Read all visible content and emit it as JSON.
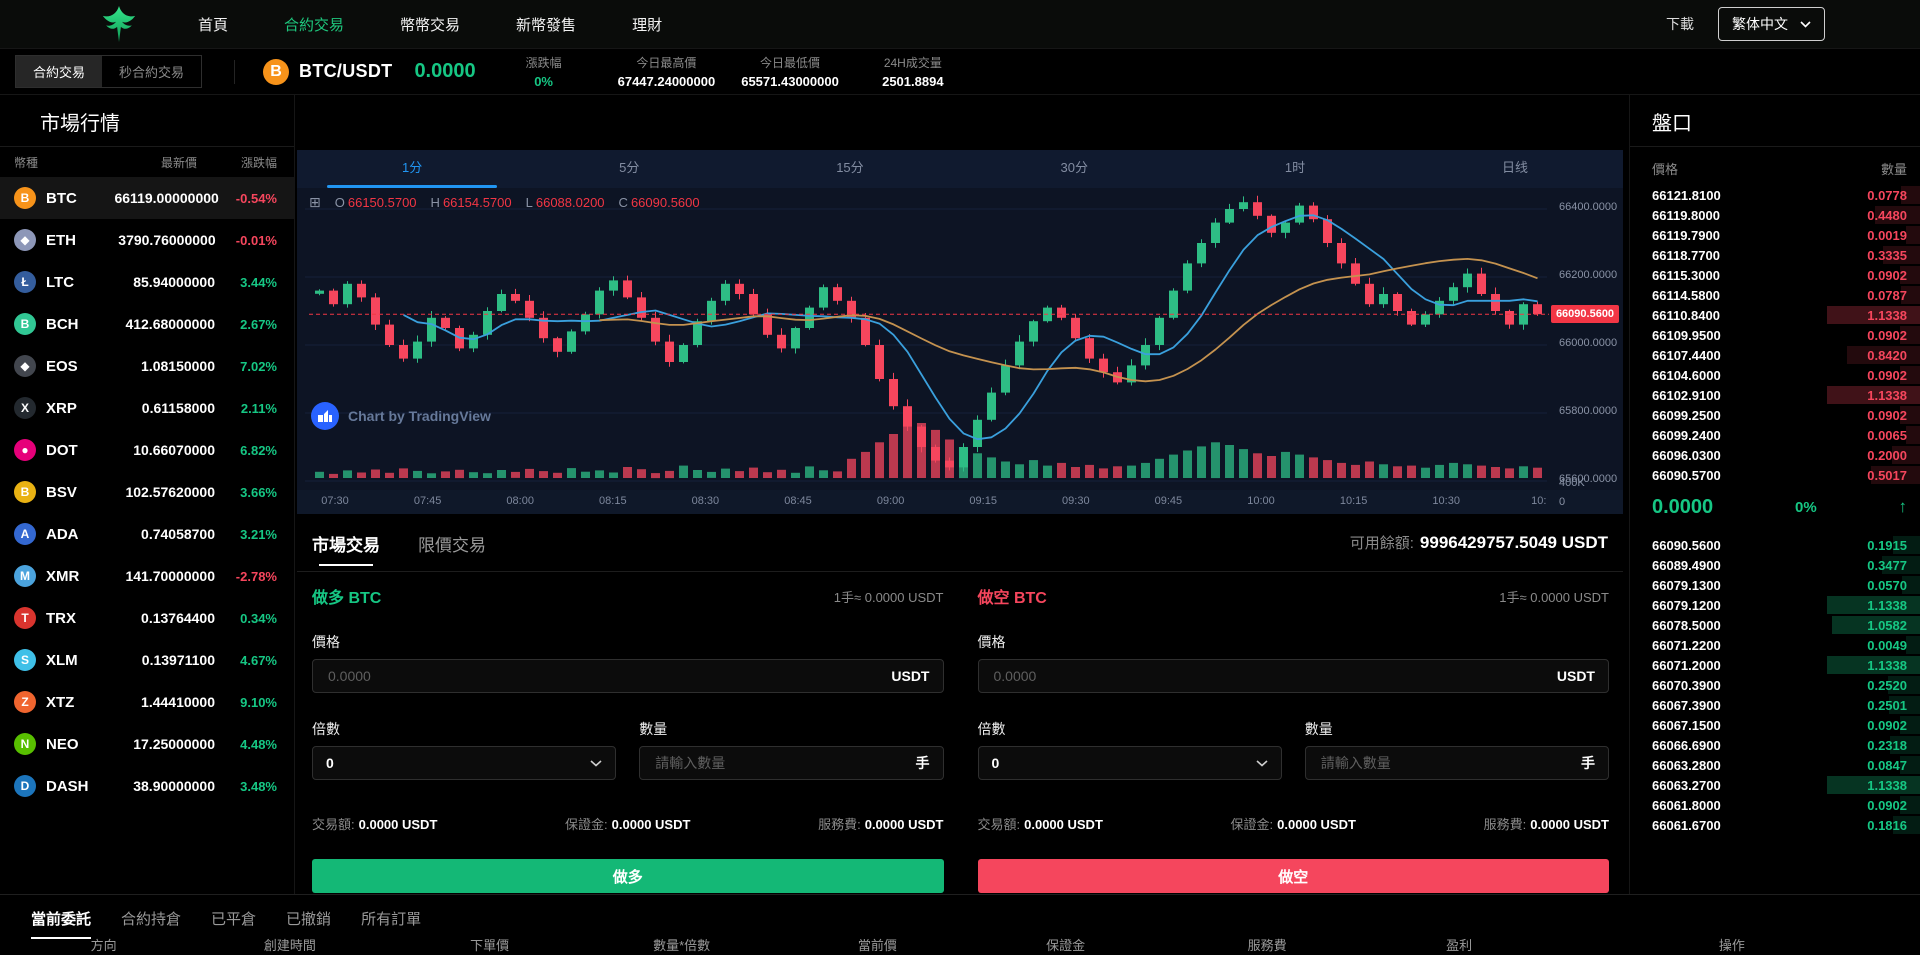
{
  "nav": {
    "items": [
      {
        "label": "首頁",
        "active": false
      },
      {
        "label": "合約交易",
        "active": true
      },
      {
        "label": "幣幣交易",
        "active": false
      },
      {
        "label": "新幣發售",
        "active": false
      },
      {
        "label": "理財",
        "active": false
      }
    ],
    "download": "下載",
    "language": "繁体中文",
    "accent_green": "#1ec77d"
  },
  "ticker": {
    "tabs": [
      {
        "label": "合約交易",
        "active": true
      },
      {
        "label": "秒合約交易",
        "active": false
      }
    ],
    "coin_icon": "B",
    "pair": "BTC/USDT",
    "price": "0.0000",
    "stats": [
      {
        "label": "漲跌幅",
        "value": "0%",
        "green": true
      },
      {
        "label": "今日最高價",
        "value": "67447.24000000",
        "green": false
      },
      {
        "label": "今日最低價",
        "value": "65571.43000000",
        "green": false
      },
      {
        "label": "24H成交量",
        "value": "2501.8894",
        "green": false
      }
    ]
  },
  "market": {
    "title": "市場行情",
    "headers": [
      "幣種",
      "最新價",
      "漲跌幅"
    ],
    "rows": [
      {
        "symbol": "BTC",
        "price": "66119.00000000",
        "change": "-0.54%",
        "down": true,
        "icon_color": "#f7931a",
        "glyph": "B",
        "highlight": true
      },
      {
        "symbol": "ETH",
        "price": "3790.76000000",
        "change": "-0.01%",
        "down": true,
        "icon_color": "#8d97b8",
        "glyph": "◆",
        "highlight": false
      },
      {
        "symbol": "LTC",
        "price": "85.94000000",
        "change": "3.44%",
        "down": false,
        "icon_color": "#345d9d",
        "glyph": "Ł",
        "highlight": false
      },
      {
        "symbol": "BCH",
        "price": "412.68000000",
        "change": "2.67%",
        "down": false,
        "icon_color": "#31c794",
        "glyph": "B",
        "highlight": false
      },
      {
        "symbol": "EOS",
        "price": "1.08150000",
        "change": "7.02%",
        "down": false,
        "icon_color": "#42464e",
        "glyph": "◆",
        "highlight": false
      },
      {
        "symbol": "XRP",
        "price": "0.61158000",
        "change": "2.11%",
        "down": false,
        "icon_color": "#23292f",
        "glyph": "X",
        "highlight": false
      },
      {
        "symbol": "DOT",
        "price": "10.66070000",
        "change": "6.82%",
        "down": false,
        "icon_color": "#e6007a",
        "glyph": "●",
        "highlight": false
      },
      {
        "symbol": "BSV",
        "price": "102.57620000",
        "change": "3.66%",
        "down": false,
        "icon_color": "#e9b213",
        "glyph": "B",
        "highlight": false
      },
      {
        "symbol": "ADA",
        "price": "0.74058700",
        "change": "3.21%",
        "down": false,
        "icon_color": "#3468d1",
        "glyph": "A",
        "highlight": false
      },
      {
        "symbol": "XMR",
        "price": "141.70000000",
        "change": "-2.78%",
        "down": true,
        "icon_color": "#4ba3dd",
        "glyph": "M",
        "highlight": false
      },
      {
        "symbol": "TRX",
        "price": "0.13764400",
        "change": "0.34%",
        "down": false,
        "icon_color": "#d9342e",
        "glyph": "T",
        "highlight": false
      },
      {
        "symbol": "XLM",
        "price": "0.13971100",
        "change": "4.67%",
        "down": false,
        "icon_color": "#3fc0e8",
        "glyph": "S",
        "highlight": false
      },
      {
        "symbol": "XTZ",
        "price": "1.44410000",
        "change": "9.10%",
        "down": false,
        "icon_color": "#f0652f",
        "glyph": "Z",
        "highlight": false
      },
      {
        "symbol": "NEO",
        "price": "17.25000000",
        "change": "4.48%",
        "down": false,
        "icon_color": "#58bf00",
        "glyph": "N",
        "highlight": false
      },
      {
        "symbol": "DASH",
        "price": "38.90000000",
        "change": "3.48%",
        "down": false,
        "icon_color": "#1c75bc",
        "glyph": "D",
        "highlight": false
      }
    ]
  },
  "chart": {
    "timeframes": [
      "1分",
      "5分",
      "15分",
      "30分",
      "1时",
      "日线"
    ],
    "active_timeframe": "1分",
    "ohlc": {
      "o_label": "O",
      "o": "66150.5700",
      "h_label": "H",
      "h": "66154.5700",
      "l_label": "L",
      "l": "66088.0200",
      "c_label": "C",
      "c": "66090.5600"
    },
    "price_axis_labels": [
      "66400.0000",
      "66200.0000",
      "66000.0000",
      "65800.0000",
      "65600.0000"
    ],
    "last_price_label": "66090.5600",
    "volume_labels": [
      "400K",
      "0"
    ],
    "time_labels": [
      "07:30",
      "07:45",
      "08:00",
      "08:15",
      "08:30",
      "08:45",
      "09:00",
      "09:15",
      "09:30",
      "09:45",
      "10:00",
      "10:15",
      "10:30",
      "10:"
    ],
    "attribution": "Chart by TradingView",
    "up_color": "#2ebd85",
    "down_color": "#f6465d",
    "last_price_color": "#f23645"
  },
  "chart_data": {
    "type": "candlestick",
    "timeframe": "1分",
    "first_open": 66150.57,
    "last_close": 66090.56,
    "price_gridlines": [
      66400,
      66200,
      66000,
      65800,
      65600
    ],
    "ma_periods": [
      7,
      21
    ],
    "volume_axis_max_k": 400,
    "closes": [
      66160,
      66120,
      66180,
      66140,
      66060,
      66000,
      65960,
      66010,
      66080,
      66050,
      65990,
      66030,
      66100,
      66150,
      66130,
      66080,
      66020,
      65980,
      66040,
      66090,
      66160,
      66190,
      66140,
      66080,
      66010,
      65950,
      66000,
      66070,
      66130,
      66180,
      66150,
      66090,
      66030,
      65990,
      66050,
      66110,
      66170,
      66130,
      66080,
      66000,
      65900,
      65820,
      65760,
      65700,
      65660,
      65640,
      65700,
      65780,
      65860,
      65940,
      66010,
      66070,
      66110,
      66080,
      66020,
      65960,
      65920,
      65890,
      65940,
      66000,
      66080,
      66160,
      66240,
      66300,
      66360,
      66400,
      66420,
      66380,
      66330,
      66360,
      66410,
      66370,
      66300,
      66240,
      66180,
      66120,
      66150,
      66100,
      66060,
      66090,
      66130,
      66170,
      66210,
      66150,
      66100,
      66060,
      66120,
      66090.56
    ],
    "volumes_k": [
      45,
      30,
      55,
      40,
      62,
      38,
      70,
      52,
      34,
      48,
      60,
      42,
      35,
      58,
      44,
      66,
      50,
      38,
      72,
      46,
      55,
      40,
      80,
      64,
      36,
      52,
      90,
      58,
      44,
      68,
      50,
      76,
      42,
      60,
      38,
      84,
      56,
      48,
      140,
      190,
      260,
      320,
      380,
      400,
      350,
      280,
      220,
      180,
      150,
      120,
      100,
      130,
      90,
      110,
      80,
      95,
      70,
      85,
      90,
      110,
      140,
      170,
      200,
      230,
      260,
      240,
      210,
      180,
      160,
      190,
      170,
      150,
      130,
      110,
      95,
      120,
      100,
      85,
      90,
      75,
      95,
      110,
      100,
      90,
      80,
      70,
      85,
      75
    ]
  },
  "trade": {
    "tabs": [
      {
        "label": "市場交易",
        "active": true
      },
      {
        "label": "限價交易",
        "active": false
      }
    ],
    "balance_label": "可用餘額:",
    "balance_value": "9996429757.5049 USDT",
    "long": {
      "title": "做多 BTC",
      "unit": "1手≈ 0.0000 USDT",
      "price_label": "價格",
      "price_placeholder": "0.0000",
      "price_suffix": "USDT",
      "lever_label": "倍數",
      "lever_value": "0",
      "qty_label": "數量",
      "qty_placeholder": "請輸入數量",
      "qty_suffix": "手",
      "amount_label": "交易額:",
      "amount_value": "0.0000 USDT",
      "margin_label": "保證金:",
      "margin_value": "0.0000 USDT",
      "fee_label": "服務費:",
      "fee_value": "0.0000 USDT",
      "button": "做多"
    },
    "short": {
      "title": "做空 BTC",
      "unit": "1手≈ 0.0000 USDT",
      "price_label": "價格",
      "price_placeholder": "0.0000",
      "price_suffix": "USDT",
      "lever_label": "倍數",
      "lever_value": "0",
      "qty_label": "數量",
      "qty_placeholder": "請輸入數量",
      "qty_suffix": "手",
      "amount_label": "交易額:",
      "amount_value": "0.0000 USDT",
      "margin_label": "保證金:",
      "margin_value": "0.0000 USDT",
      "fee_label": "服務費:",
      "fee_value": "0.0000 USDT",
      "button": "做空"
    }
  },
  "orderbook": {
    "title": "盤口",
    "headers": [
      "價格",
      "數量"
    ],
    "asks": [
      {
        "p": "66121.8100",
        "q": "0.0778"
      },
      {
        "p": "66119.8000",
        "q": "0.4480"
      },
      {
        "p": "66119.7900",
        "q": "0.0019"
      },
      {
        "p": "66118.7700",
        "q": "0.3335"
      },
      {
        "p": "66115.3000",
        "q": "0.0902"
      },
      {
        "p": "66114.5800",
        "q": "0.0787"
      },
      {
        "p": "66110.8400",
        "q": "1.1338"
      },
      {
        "p": "66109.9500",
        "q": "0.0902"
      },
      {
        "p": "66107.4400",
        "q": "0.8420"
      },
      {
        "p": "66104.6000",
        "q": "0.0902"
      },
      {
        "p": "66102.9100",
        "q": "1.1338"
      },
      {
        "p": "66099.2500",
        "q": "0.0902"
      },
      {
        "p": "66099.2400",
        "q": "0.0065"
      },
      {
        "p": "66096.0300",
        "q": "0.2000"
      },
      {
        "p": "66090.5700",
        "q": "0.5017"
      }
    ],
    "mid": {
      "price": "0.0000",
      "pct": "0%",
      "arrow": "↑"
    },
    "bids": [
      {
        "p": "66090.5600",
        "q": "0.1915"
      },
      {
        "p": "66089.4900",
        "q": "0.3477"
      },
      {
        "p": "66079.1300",
        "q": "0.0570"
      },
      {
        "p": "66079.1200",
        "q": "1.1338"
      },
      {
        "p": "66078.5000",
        "q": "1.0582"
      },
      {
        "p": "66071.2200",
        "q": "0.0049"
      },
      {
        "p": "66071.2000",
        "q": "1.1338"
      },
      {
        "p": "66070.3900",
        "q": "0.2520"
      },
      {
        "p": "66067.3900",
        "q": "0.2501"
      },
      {
        "p": "66067.1500",
        "q": "0.0902"
      },
      {
        "p": "66066.6900",
        "q": "0.2318"
      },
      {
        "p": "66063.2800",
        "q": "0.0847"
      },
      {
        "p": "66063.2700",
        "q": "1.1338"
      },
      {
        "p": "66061.8000",
        "q": "0.0902"
      },
      {
        "p": "66061.6700",
        "q": "0.1816"
      }
    ]
  },
  "bottom": {
    "tabs": [
      {
        "label": "當前委託",
        "active": true
      },
      {
        "label": "合約持倉",
        "active": false
      },
      {
        "label": "已平倉",
        "active": false
      },
      {
        "label": "已撤銷",
        "active": false
      },
      {
        "label": "所有訂單",
        "active": false
      }
    ],
    "columns": [
      "方向",
      "創建時間",
      "下單價",
      "數量*倍數",
      "當前價",
      "保證金",
      "服務費",
      "盈利",
      "操作"
    ]
  }
}
